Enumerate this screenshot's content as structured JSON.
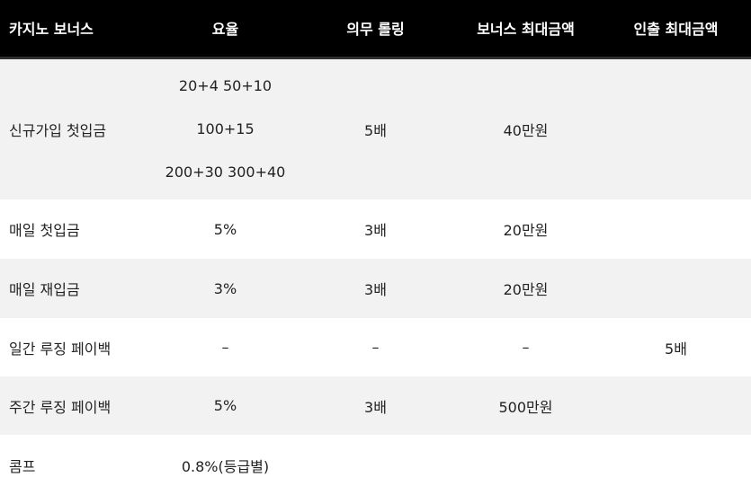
{
  "header": {
    "col0": "카지노 보너스",
    "col1": "요율",
    "col2": "의무 롤링",
    "col3": "보너스 최대금액",
    "col4": "인출 최대금액"
  },
  "rows": [
    {
      "name": "신규가입 첫입금",
      "rate_lines": [
        "20+4 50+10",
        "100+15",
        "200+30 300+40"
      ],
      "rolling": "5배",
      "bonus_max": "40만원",
      "withdraw_max": ""
    },
    {
      "name": "매일 첫입금",
      "rate": "5%",
      "rolling": "3배",
      "bonus_max": "20만원",
      "withdraw_max": ""
    },
    {
      "name": "매일 재입금",
      "rate": "3%",
      "rolling": "3배",
      "bonus_max": "20만원",
      "withdraw_max": ""
    },
    {
      "name": "일간 루징 페이백",
      "rate": "–",
      "rolling": "–",
      "bonus_max": "–",
      "withdraw_max": "5배"
    },
    {
      "name": "주간 루징 페이백",
      "rate": "5%",
      "rolling": "3배",
      "bonus_max": "500만원",
      "withdraw_max": ""
    },
    {
      "name": "콤프",
      "rate": "0.8%(등급별)",
      "rolling": "",
      "bonus_max": "",
      "withdraw_max": ""
    }
  ]
}
